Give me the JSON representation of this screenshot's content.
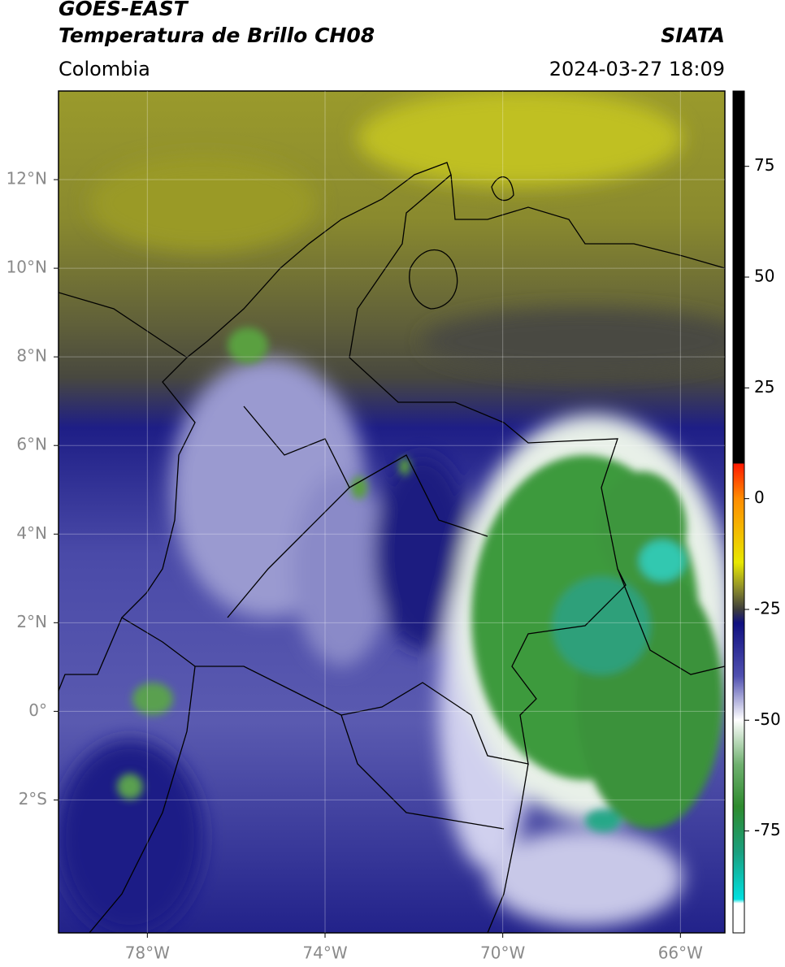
{
  "header": {
    "title": "GOES-EAST",
    "subtitle": "Temperatura de Brillo CH08",
    "source": "SIATA",
    "region": "Colombia",
    "timestamp": "2024-03-27 18:09"
  },
  "map": {
    "xlim": [
      -80,
      -65
    ],
    "ylim": [
      -5,
      14
    ],
    "grid": true,
    "xticks": [
      {
        "value": -78,
        "label": "78°W"
      },
      {
        "value": -74,
        "label": "74°W"
      },
      {
        "value": -70,
        "label": "70°W"
      },
      {
        "value": -66,
        "label": "66°W"
      }
    ],
    "yticks": [
      {
        "value": 12,
        "label": "12°N"
      },
      {
        "value": 10,
        "label": "10°N"
      },
      {
        "value": 8,
        "label": "8°N"
      },
      {
        "value": 6,
        "label": "6°N"
      },
      {
        "value": 4,
        "label": "4°N"
      },
      {
        "value": 2,
        "label": "2°N"
      },
      {
        "value": 0,
        "label": "0°"
      },
      {
        "value": -2,
        "label": "2°S"
      }
    ]
  },
  "colorbar": {
    "lim": [
      -98,
      92
    ],
    "ticks": [
      75,
      50,
      25,
      0,
      -25,
      -50,
      -75
    ]
  }
}
